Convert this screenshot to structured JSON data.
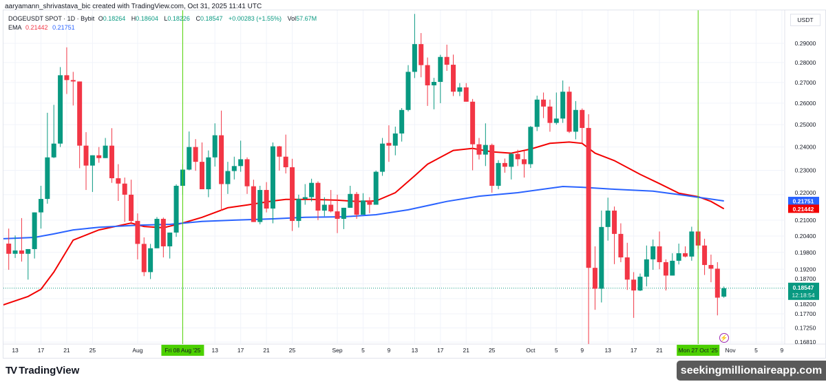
{
  "header": {
    "attribution": "aaryamann_shrivastava_bic created with TradingView.com, Oct 31, 2025 11:41 UTC"
  },
  "legend": {
    "symbol": "DOGEUSDT SPOT · 1D · Bybit",
    "o_label": "O",
    "o": "0.18264",
    "h_label": "H",
    "h": "0.18604",
    "l_label": "L",
    "l": "0.18226",
    "c_label": "C",
    "c": "0.18547",
    "change": "+0.00283 (+1.55%)",
    "vol_label": "Vol",
    "vol": "57.67M",
    "ema_label": "EMA",
    "ema1": "0.21442",
    "ema2": "0.21751"
  },
  "price_axis": {
    "currency": "USDT"
  },
  "footer": {
    "logo_mark": "TV",
    "logo_text": "TradingView",
    "watermark": "seekingmillionaireapp.com"
  },
  "icons": {
    "alert": "lightning-bolt-icon"
  },
  "colors": {
    "up": "#089981",
    "down": "#f23645",
    "ema_fast": "#f20000",
    "ema_slow": "#2962ff",
    "marker_line": "#4cd000",
    "marker_bg": "#4cd000"
  },
  "chart_data": {
    "type": "candlestick",
    "title": "DOGEUSDT SPOT · 1D · Bybit",
    "y_scale": "log",
    "ylim": [
      0.1681,
      0.2968
    ],
    "xlim": [
      "2025-07-11",
      "2025-11-10"
    ],
    "grid": true,
    "y_ticks": [
      "0.29000",
      "0.28000",
      "0.27000",
      "0.26000",
      "0.25000",
      "0.24000",
      "0.23000",
      "0.22000",
      "0.21000",
      "0.20400",
      "0.19800",
      "0.19200",
      "0.18700",
      "0.18200",
      "0.17700",
      "0.17250",
      "0.16810"
    ],
    "x_ticks": [
      {
        "date": "2025-07-13",
        "label": "13"
      },
      {
        "date": "2025-07-17",
        "label": "17"
      },
      {
        "date": "2025-07-21",
        "label": "21"
      },
      {
        "date": "2025-07-25",
        "label": "25"
      },
      {
        "date": "2025-08-01",
        "label": "Aug"
      },
      {
        "date": "2025-08-13",
        "label": "13"
      },
      {
        "date": "2025-08-17",
        "label": "17"
      },
      {
        "date": "2025-08-21",
        "label": "21"
      },
      {
        "date": "2025-08-25",
        "label": "25"
      },
      {
        "date": "2025-09-01",
        "label": "Sep"
      },
      {
        "date": "2025-09-05",
        "label": "5"
      },
      {
        "date": "2025-09-09",
        "label": "9"
      },
      {
        "date": "2025-09-13",
        "label": "13"
      },
      {
        "date": "2025-09-17",
        "label": "17"
      },
      {
        "date": "2025-09-21",
        "label": "21"
      },
      {
        "date": "2025-09-25",
        "label": "25"
      },
      {
        "date": "2025-10-01",
        "label": "Oct"
      },
      {
        "date": "2025-10-05",
        "label": "5"
      },
      {
        "date": "2025-10-09",
        "label": "9"
      },
      {
        "date": "2025-10-13",
        "label": "13"
      },
      {
        "date": "2025-10-17",
        "label": "17"
      },
      {
        "date": "2025-10-21",
        "label": "21"
      },
      {
        "date": "2025-11-01",
        "label": "Nov"
      },
      {
        "date": "2025-11-05",
        "label": "5"
      },
      {
        "date": "2025-11-09",
        "label": "9"
      }
    ],
    "markers": [
      {
        "date": "2025-08-08",
        "label": "Fri 08 Aug '25"
      },
      {
        "date": "2025-10-27",
        "label": "Mon 27 Oct '25"
      }
    ],
    "last_price": {
      "value": 0.18547,
      "label": "0.18547",
      "countdown": "12:18:54"
    },
    "ema_labels": [
      {
        "value": 0.21751,
        "label": "0.21751",
        "color": "#2962ff"
      },
      {
        "value": 0.21442,
        "label": "0.21442",
        "color": "#f20000"
      }
    ],
    "candles_columns": [
      "date",
      "open",
      "high",
      "low",
      "close"
    ],
    "candles": [
      [
        "2025-07-12",
        0.2012,
        0.2068,
        0.1918,
        0.1975
      ],
      [
        "2025-07-13",
        0.1975,
        0.2042,
        0.196,
        0.1987
      ],
      [
        "2025-07-14",
        0.1987,
        0.2108,
        0.1947,
        0.1975
      ],
      [
        "2025-07-15",
        0.1975,
        0.1992,
        0.1884,
        0.1992
      ],
      [
        "2025-07-16",
        0.1992,
        0.213,
        0.1958,
        0.213
      ],
      [
        "2025-07-17",
        0.213,
        0.2236,
        0.2068,
        0.2183
      ],
      [
        "2025-07-18",
        0.2183,
        0.2555,
        0.2164,
        0.2355
      ],
      [
        "2025-07-19",
        0.2355,
        0.2592,
        0.2352,
        0.2415
      ],
      [
        "2025-07-20",
        0.2415,
        0.2777,
        0.24,
        0.2736
      ],
      [
        "2025-07-21",
        0.2736,
        0.2879,
        0.2644,
        0.2712
      ],
      [
        "2025-07-22",
        0.2712,
        0.2753,
        0.2589,
        0.2705
      ],
      [
        "2025-07-23",
        0.2705,
        0.2705,
        0.2309,
        0.2406
      ],
      [
        "2025-07-24",
        0.2406,
        0.2466,
        0.2219,
        0.232
      ],
      [
        "2025-07-25",
        0.232,
        0.2364,
        0.2211,
        0.2364
      ],
      [
        "2025-07-26",
        0.2364,
        0.24,
        0.2332,
        0.2352
      ],
      [
        "2025-07-27",
        0.2352,
        0.244,
        0.2352,
        0.2406
      ],
      [
        "2025-07-28",
        0.2406,
        0.2484,
        0.2248,
        0.2267
      ],
      [
        "2025-07-29",
        0.2267,
        0.2326,
        0.2175,
        0.2245
      ],
      [
        "2025-07-30",
        0.2245,
        0.227,
        0.2093,
        0.22
      ],
      [
        "2025-07-31",
        0.22,
        0.2261,
        0.2084,
        0.2097
      ],
      [
        "2025-08-01",
        0.2097,
        0.2126,
        0.1955,
        0.2011
      ],
      [
        "2025-08-02",
        0.2011,
        0.2035,
        0.1896,
        0.191
      ],
      [
        "2025-08-03",
        0.191,
        0.2011,
        0.1886,
        0.1995
      ],
      [
        "2025-08-04",
        0.1995,
        0.2112,
        0.1995,
        0.2105
      ],
      [
        "2025-08-05",
        0.2105,
        0.211,
        0.1962,
        0.2002
      ],
      [
        "2025-08-06",
        0.2002,
        0.2053,
        0.1958,
        0.2053
      ],
      [
        "2025-08-07",
        0.2053,
        0.2242,
        0.2037,
        0.2236
      ],
      [
        "2025-08-08",
        0.2236,
        0.2326,
        0.22,
        0.2303
      ],
      [
        "2025-08-09",
        0.2303,
        0.2469,
        0.23,
        0.24
      ],
      [
        "2025-08-10",
        0.24,
        0.2435,
        0.2298,
        0.2336
      ],
      [
        "2025-08-11",
        0.2336,
        0.242,
        0.2222,
        0.2222
      ],
      [
        "2025-08-12",
        0.2222,
        0.2385,
        0.219,
        0.2355
      ],
      [
        "2025-08-13",
        0.2355,
        0.2506,
        0.2316,
        0.2452
      ],
      [
        "2025-08-14",
        0.2452,
        0.2565,
        0.2137,
        0.2243
      ],
      [
        "2025-08-15",
        0.2243,
        0.2336,
        0.2203,
        0.2297
      ],
      [
        "2025-08-16",
        0.2297,
        0.2358,
        0.2262,
        0.2318
      ],
      [
        "2025-08-17",
        0.2318,
        0.2428,
        0.2294,
        0.2347
      ],
      [
        "2025-08-18",
        0.2347,
        0.2355,
        0.2203,
        0.2234
      ],
      [
        "2025-08-19",
        0.2234,
        0.2261,
        0.2093,
        0.2093
      ],
      [
        "2025-08-20",
        0.2093,
        0.2236,
        0.2084,
        0.2219
      ],
      [
        "2025-08-21",
        0.2219,
        0.2251,
        0.213,
        0.2145
      ],
      [
        "2025-08-22",
        0.2145,
        0.242,
        0.2088,
        0.2403
      ],
      [
        "2025-08-23",
        0.2403,
        0.2405,
        0.2299,
        0.2358
      ],
      [
        "2025-08-24",
        0.2358,
        0.2455,
        0.2287,
        0.2313
      ],
      [
        "2025-08-25",
        0.2313,
        0.2349,
        0.2059,
        0.2097
      ],
      [
        "2025-08-26",
        0.2097,
        0.22,
        0.2072,
        0.2183
      ],
      [
        "2025-08-27",
        0.2183,
        0.2243,
        0.216,
        0.219
      ],
      [
        "2025-08-28",
        0.219,
        0.2265,
        0.2173,
        0.2248
      ],
      [
        "2025-08-29",
        0.2248,
        0.2254,
        0.21,
        0.2137
      ],
      [
        "2025-08-30",
        0.2137,
        0.219,
        0.2115,
        0.216
      ],
      [
        "2025-08-31",
        0.216,
        0.2219,
        0.213,
        0.2134
      ],
      [
        "2025-09-01",
        0.2134,
        0.22,
        0.2051,
        0.2105
      ],
      [
        "2025-09-02",
        0.2105,
        0.2148,
        0.2066,
        0.2148
      ],
      [
        "2025-09-03",
        0.2148,
        0.2236,
        0.2148,
        0.2203
      ],
      [
        "2025-09-04",
        0.2203,
        0.2211,
        0.2105,
        0.2121
      ],
      [
        "2025-09-05",
        0.2121,
        0.2206,
        0.2121,
        0.2177
      ],
      [
        "2025-09-06",
        0.2177,
        0.219,
        0.2127,
        0.216
      ],
      [
        "2025-09-07",
        0.216,
        0.2299,
        0.216,
        0.2294
      ],
      [
        "2025-09-08",
        0.2294,
        0.244,
        0.2277,
        0.2415
      ],
      [
        "2025-09-09",
        0.2418,
        0.2497,
        0.2336,
        0.2406
      ],
      [
        "2025-09-10",
        0.2406,
        0.2491,
        0.2364,
        0.246
      ],
      [
        "2025-09-11",
        0.246,
        0.2577,
        0.2424,
        0.2568
      ],
      [
        "2025-09-12",
        0.2568,
        0.2787,
        0.2561,
        0.2753
      ],
      [
        "2025-09-13",
        0.2753,
        0.306,
        0.2722,
        0.2896
      ],
      [
        "2025-09-14",
        0.2896,
        0.2955,
        0.2726,
        0.2787
      ],
      [
        "2025-09-15",
        0.2787,
        0.2826,
        0.2587,
        0.2686
      ],
      [
        "2025-09-16",
        0.2686,
        0.2723,
        0.2571,
        0.2703
      ],
      [
        "2025-09-17",
        0.2703,
        0.284,
        0.26,
        0.2829
      ],
      [
        "2025-09-18",
        0.2829,
        0.2893,
        0.2758,
        0.2789
      ],
      [
        "2025-09-19",
        0.2789,
        0.2841,
        0.2634,
        0.2655
      ],
      [
        "2025-09-20",
        0.2655,
        0.2697,
        0.2634,
        0.2676
      ],
      [
        "2025-09-21",
        0.2676,
        0.2697,
        0.2607,
        0.2607
      ],
      [
        "2025-09-22",
        0.2607,
        0.262,
        0.23,
        0.2412
      ],
      [
        "2025-09-23",
        0.2412,
        0.244,
        0.2346,
        0.2367
      ],
      [
        "2025-09-24",
        0.2367,
        0.2506,
        0.2318,
        0.2409
      ],
      [
        "2025-09-25",
        0.2409,
        0.2415,
        0.2208,
        0.2236
      ],
      [
        "2025-09-26",
        0.2236,
        0.2343,
        0.2222,
        0.2331
      ],
      [
        "2025-09-27",
        0.2331,
        0.235,
        0.229,
        0.2315
      ],
      [
        "2025-09-28",
        0.2315,
        0.2375,
        0.2262,
        0.237
      ],
      [
        "2025-09-29",
        0.237,
        0.2388,
        0.2318,
        0.2347
      ],
      [
        "2025-09-30",
        0.2347,
        0.2383,
        0.227,
        0.2326
      ],
      [
        "2025-10-01",
        0.2326,
        0.2494,
        0.231,
        0.249
      ],
      [
        "2025-10-02",
        0.249,
        0.2636,
        0.2471,
        0.2617
      ],
      [
        "2025-10-03",
        0.2617,
        0.2651,
        0.253,
        0.2584
      ],
      [
        "2025-10-04",
        0.2584,
        0.2617,
        0.2468,
        0.2508
      ],
      [
        "2025-10-05",
        0.2508,
        0.2651,
        0.25,
        0.2528
      ],
      [
        "2025-10-06",
        0.2528,
        0.271,
        0.2508,
        0.2655
      ],
      [
        "2025-10-07",
        0.2655,
        0.268,
        0.2462,
        0.2468
      ],
      [
        "2025-10-08",
        0.2468,
        0.261,
        0.2434,
        0.2568
      ],
      [
        "2025-10-09",
        0.2568,
        0.2575,
        0.2418,
        0.2485
      ],
      [
        "2025-10-10",
        0.2485,
        0.2548,
        0.1675,
        0.1925
      ],
      [
        "2025-10-11",
        0.1925,
        0.2002,
        0.1783,
        0.1853
      ],
      [
        "2025-10-12",
        0.1853,
        0.2137,
        0.1807,
        0.2074
      ],
      [
        "2025-10-13",
        0.2074,
        0.2188,
        0.2023,
        0.2137
      ],
      [
        "2025-10-14",
        0.2137,
        0.2153,
        0.1938,
        0.2048
      ],
      [
        "2025-10-15",
        0.2048,
        0.2088,
        0.1945,
        0.1962
      ],
      [
        "2025-10-16",
        0.1962,
        0.2015,
        0.1849,
        0.1884
      ],
      [
        "2025-10-17",
        0.1884,
        0.191,
        0.1757,
        0.1847
      ],
      [
        "2025-10-18",
        0.1847,
        0.1905,
        0.1845,
        0.1894
      ],
      [
        "2025-10-19",
        0.1894,
        0.2005,
        0.1861,
        0.1955
      ],
      [
        "2025-10-20",
        0.1955,
        0.2027,
        0.1918,
        0.2002
      ],
      [
        "2025-10-21",
        0.2002,
        0.2057,
        0.192,
        0.1945
      ],
      [
        "2025-10-22",
        0.1945,
        0.1955,
        0.1847,
        0.1898
      ],
      [
        "2025-10-23",
        0.1898,
        0.1977,
        0.1898,
        0.195
      ],
      [
        "2025-10-24",
        0.195,
        0.2012,
        0.1937,
        0.1977
      ],
      [
        "2025-10-25",
        0.1977,
        0.2002,
        0.1962,
        0.1965
      ],
      [
        "2025-10-26",
        0.1965,
        0.2075,
        0.195,
        0.2057
      ],
      [
        "2025-10-27",
        0.2057,
        0.2101,
        0.1993,
        0.2005
      ],
      [
        "2025-10-28",
        0.2005,
        0.203,
        0.19,
        0.1935
      ],
      [
        "2025-10-29",
        0.1935,
        0.1972,
        0.1875,
        0.1922
      ],
      [
        "2025-10-30",
        0.1922,
        0.1945,
        0.1765,
        0.1823
      ],
      [
        "2025-10-31",
        0.18264,
        0.18604,
        0.18226,
        0.18547
      ]
    ],
    "series": [
      {
        "name": "EMA",
        "color": "#f20000",
        "points": [
          [
            "2025-07-11",
            0.1798
          ],
          [
            "2025-07-15",
            0.1827
          ],
          [
            "2025-07-17",
            0.1851
          ],
          [
            "2025-07-19",
            0.191
          ],
          [
            "2025-07-22",
            0.2025
          ],
          [
            "2025-07-26",
            0.2063
          ],
          [
            "2025-07-31",
            0.2089
          ],
          [
            "2025-08-02",
            0.2076
          ],
          [
            "2025-08-05",
            0.2071
          ],
          [
            "2025-08-08",
            0.2089
          ],
          [
            "2025-08-11",
            0.2111
          ],
          [
            "2025-08-15",
            0.2148
          ],
          [
            "2025-08-18",
            0.2159
          ],
          [
            "2025-08-22",
            0.2175
          ],
          [
            "2025-08-24",
            0.2181
          ],
          [
            "2025-08-28",
            0.2181
          ],
          [
            "2025-09-01",
            0.2178
          ],
          [
            "2025-09-04",
            0.2173
          ],
          [
            "2025-09-07",
            0.2175
          ],
          [
            "2025-09-10",
            0.2208
          ],
          [
            "2025-09-13",
            0.2277
          ],
          [
            "2025-09-15",
            0.2326
          ],
          [
            "2025-09-19",
            0.2385
          ],
          [
            "2025-09-22",
            0.2394
          ],
          [
            "2025-09-25",
            0.2379
          ],
          [
            "2025-09-28",
            0.2373
          ],
          [
            "2025-10-01",
            0.2391
          ],
          [
            "2025-10-04",
            0.2416
          ],
          [
            "2025-10-07",
            0.2422
          ],
          [
            "2025-10-09",
            0.2416
          ],
          [
            "2025-10-11",
            0.2373
          ],
          [
            "2025-10-14",
            0.2341
          ],
          [
            "2025-10-18",
            0.2283
          ],
          [
            "2025-10-21",
            0.2245
          ],
          [
            "2025-10-24",
            0.2206
          ],
          [
            "2025-10-27",
            0.2192
          ],
          [
            "2025-10-29",
            0.2173
          ],
          [
            "2025-10-31",
            0.2144
          ]
        ]
      },
      {
        "name": "EMA",
        "color": "#2962ff",
        "points": [
          [
            "2025-07-11",
            0.203
          ],
          [
            "2025-07-16",
            0.2035
          ],
          [
            "2025-07-19",
            0.2048
          ],
          [
            "2025-07-22",
            0.2063
          ],
          [
            "2025-07-26",
            0.2073
          ],
          [
            "2025-08-01",
            0.2081
          ],
          [
            "2025-08-06",
            0.2084
          ],
          [
            "2025-08-11",
            0.2095
          ],
          [
            "2025-08-16",
            0.21
          ],
          [
            "2025-08-22",
            0.2105
          ],
          [
            "2025-08-27",
            0.2111
          ],
          [
            "2025-09-02",
            0.2113
          ],
          [
            "2025-09-07",
            0.2121
          ],
          [
            "2025-09-12",
            0.214
          ],
          [
            "2025-09-18",
            0.2173
          ],
          [
            "2025-09-23",
            0.2194
          ],
          [
            "2025-09-29",
            0.2208
          ],
          [
            "2025-10-06",
            0.2233
          ],
          [
            "2025-10-09",
            0.223
          ],
          [
            "2025-10-14",
            0.2222
          ],
          [
            "2025-10-20",
            0.2214
          ],
          [
            "2025-10-25",
            0.2197
          ],
          [
            "2025-10-31",
            0.2175
          ]
        ]
      }
    ]
  }
}
